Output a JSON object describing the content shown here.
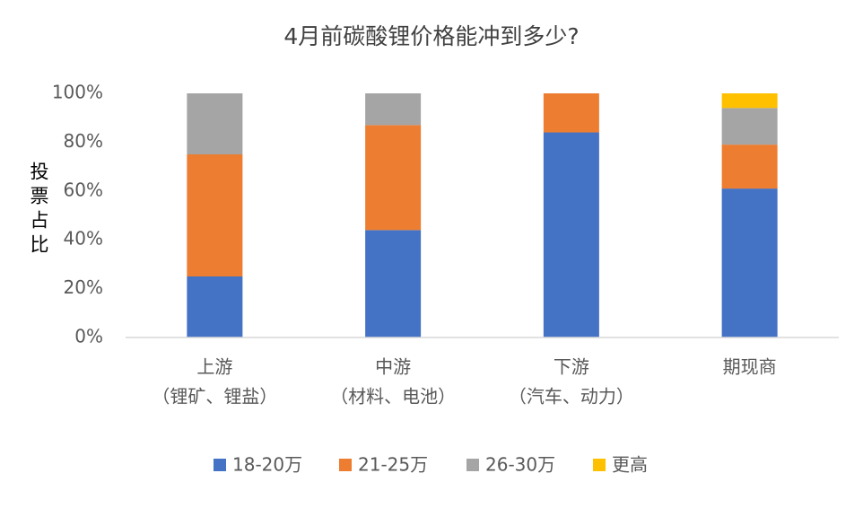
{
  "chart_data": {
    "type": "stacked_bar",
    "title": "4月前碳酸锂价格能冲到多少?",
    "y_label": "投票占比",
    "categories": [
      [
        "上游",
        "（锂矿、锂盐）"
      ],
      [
        "中游",
        "（材料、电池）"
      ],
      [
        "下游",
        "（汽车、动力）"
      ],
      [
        "期现商"
      ]
    ],
    "series": [
      {
        "name": "18-20万",
        "color": "#4472c4",
        "values": [
          25,
          44,
          84,
          61
        ]
      },
      {
        "name": "21-25万",
        "color": "#ed7d31",
        "values": [
          50,
          43,
          16,
          18
        ]
      },
      {
        "name": "26-30万",
        "color": "#a5a5a5",
        "values": [
          25,
          13,
          0,
          15
        ]
      },
      {
        "name": "更高",
        "color": "#ffc000",
        "values": [
          0,
          0,
          0,
          6
        ]
      }
    ],
    "ylim": [
      0,
      100
    ],
    "yticks": [
      {
        "value": 0,
        "label": "0%"
      },
      {
        "value": 20,
        "label": "20%"
      },
      {
        "value": 40,
        "label": "40%"
      },
      {
        "value": 60,
        "label": "60%"
      },
      {
        "value": 80,
        "label": "80%"
      },
      {
        "value": 100,
        "label": "100%"
      }
    ],
    "grid": false,
    "legend": "bottom"
  }
}
